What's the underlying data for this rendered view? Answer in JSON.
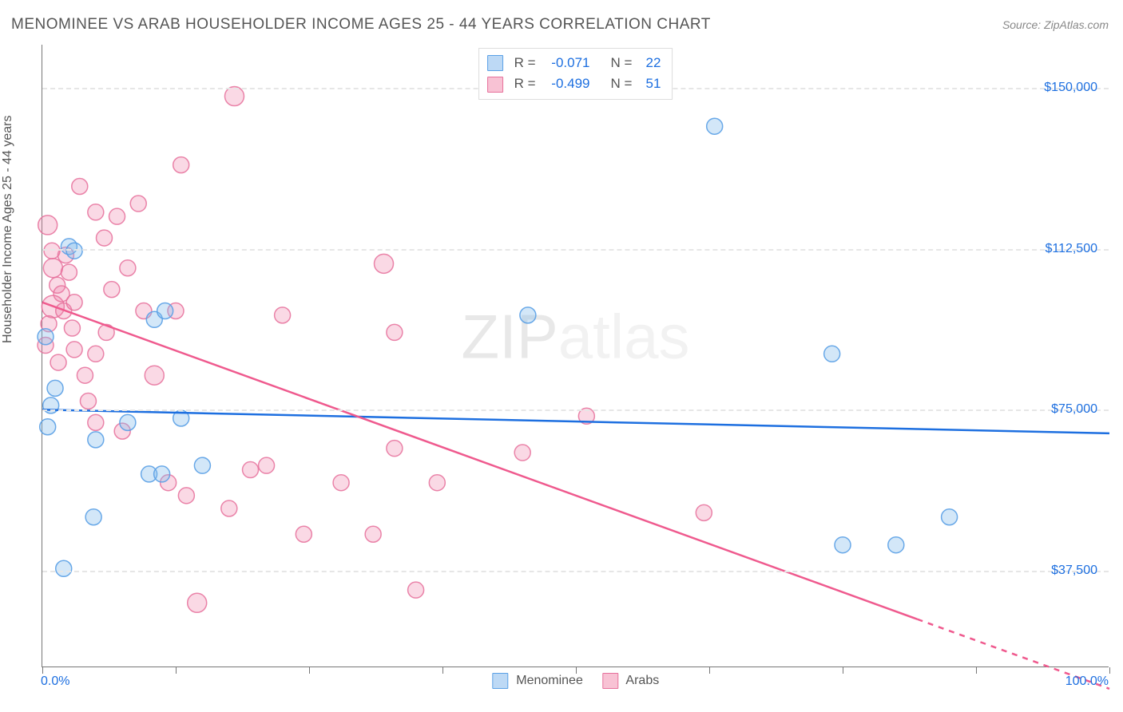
{
  "title": "MENOMINEE VS ARAB HOUSEHOLDER INCOME AGES 25 - 44 YEARS CORRELATION CHART",
  "source": "Source: ZipAtlas.com",
  "watermark_A": "ZIP",
  "watermark_B": "atlas",
  "chart": {
    "type": "scatter",
    "y_axis_label": "Householder Income Ages 25 - 44 years",
    "xlim": [
      0,
      100
    ],
    "ylim": [
      15000,
      160000
    ],
    "y_ticks": [
      37500,
      75000,
      112500,
      150000
    ],
    "y_tick_labels": [
      "$37,500",
      "$75,000",
      "$112,500",
      "$150,000"
    ],
    "x_ticks": [
      0,
      12.5,
      25,
      37.5,
      50,
      62.5,
      75,
      87.5,
      100
    ],
    "x_tick_labels": {
      "0": "0.0%",
      "100": "100.0%"
    },
    "grid_color": "#e6e6e6",
    "background_color": "#ffffff",
    "axis_color": "#777777",
    "label_fontsize": 16,
    "title_fontsize": 19,
    "series": [
      {
        "name": "Menominee",
        "color": "#5aa0e6",
        "fill": "rgba(130,185,235,0.35)",
        "stroke": "rgba(90,160,230,0.9)",
        "stats": {
          "R": "-0.071",
          "N": "22"
        },
        "trend": {
          "x1": 0,
          "y1": 75000,
          "x2": 100,
          "y2": 69500,
          "color": "#1d6fe0",
          "width": 2.5
        },
        "points": [
          {
            "x": 0.3,
            "y": 92000,
            "r": 10
          },
          {
            "x": 2.5,
            "y": 113000,
            "r": 10
          },
          {
            "x": 3.0,
            "y": 112000,
            "r": 10
          },
          {
            "x": 1.2,
            "y": 80000,
            "r": 10
          },
          {
            "x": 0.8,
            "y": 76000,
            "r": 10
          },
          {
            "x": 0.5,
            "y": 71000,
            "r": 10
          },
          {
            "x": 4.8,
            "y": 50000,
            "r": 10
          },
          {
            "x": 2.0,
            "y": 38000,
            "r": 10
          },
          {
            "x": 5.0,
            "y": 68000,
            "r": 10
          },
          {
            "x": 10.0,
            "y": 60000,
            "r": 10
          },
          {
            "x": 11.2,
            "y": 60000,
            "r": 10
          },
          {
            "x": 13.0,
            "y": 73000,
            "r": 10
          },
          {
            "x": 15.0,
            "y": 62000,
            "r": 10
          },
          {
            "x": 8.0,
            "y": 72000,
            "r": 10
          },
          {
            "x": 10.5,
            "y": 96000,
            "r": 10
          },
          {
            "x": 45.5,
            "y": 97000,
            "r": 10
          },
          {
            "x": 63.0,
            "y": 141000,
            "r": 10
          },
          {
            "x": 74.0,
            "y": 88000,
            "r": 10
          },
          {
            "x": 85.0,
            "y": 50000,
            "r": 10
          },
          {
            "x": 75.0,
            "y": 43500,
            "r": 10
          },
          {
            "x": 80.0,
            "y": 43500,
            "r": 10
          },
          {
            "x": 11.5,
            "y": 98000,
            "r": 10
          }
        ]
      },
      {
        "name": "Arabs",
        "color": "#e6709b",
        "fill": "rgba(240,130,170,0.30)",
        "stroke": "rgba(230,112,155,0.85)",
        "stats": {
          "R": "-0.499",
          "N": "51"
        },
        "trend": {
          "x1": 0,
          "y1": 100000,
          "x2": 100,
          "y2": 10000,
          "color": "#ef5a8e",
          "width": 2.5,
          "dash_after_x": 82
        },
        "points": [
          {
            "x": 0.5,
            "y": 118000,
            "r": 12
          },
          {
            "x": 1.0,
            "y": 108000,
            "r": 12
          },
          {
            "x": 1.4,
            "y": 104000,
            "r": 10
          },
          {
            "x": 1.8,
            "y": 102000,
            "r": 10
          },
          {
            "x": 1.0,
            "y": 99000,
            "r": 14
          },
          {
            "x": 0.6,
            "y": 95000,
            "r": 10
          },
          {
            "x": 2.5,
            "y": 107000,
            "r": 10
          },
          {
            "x": 0.3,
            "y": 90000,
            "r": 10
          },
          {
            "x": 2.0,
            "y": 98000,
            "r": 10
          },
          {
            "x": 3.0,
            "y": 100000,
            "r": 10
          },
          {
            "x": 3.0,
            "y": 89000,
            "r": 10
          },
          {
            "x": 5.0,
            "y": 121000,
            "r": 10
          },
          {
            "x": 5.8,
            "y": 115000,
            "r": 10
          },
          {
            "x": 5.0,
            "y": 88000,
            "r": 10
          },
          {
            "x": 6.5,
            "y": 103000,
            "r": 10
          },
          {
            "x": 7.0,
            "y": 120000,
            "r": 10
          },
          {
            "x": 9.0,
            "y": 123000,
            "r": 10
          },
          {
            "x": 9.5,
            "y": 98000,
            "r": 10
          },
          {
            "x": 10.5,
            "y": 83000,
            "r": 12
          },
          {
            "x": 12.5,
            "y": 98000,
            "r": 10
          },
          {
            "x": 13.0,
            "y": 132000,
            "r": 10
          },
          {
            "x": 18.0,
            "y": 148000,
            "r": 12
          },
          {
            "x": 5.0,
            "y": 72000,
            "r": 10
          },
          {
            "x": 4.3,
            "y": 77000,
            "r": 10
          },
          {
            "x": 7.5,
            "y": 70000,
            "r": 10
          },
          {
            "x": 11.8,
            "y": 58000,
            "r": 10
          },
          {
            "x": 13.5,
            "y": 55000,
            "r": 10
          },
          {
            "x": 17.5,
            "y": 52000,
            "r": 10
          },
          {
            "x": 14.5,
            "y": 30000,
            "r": 12
          },
          {
            "x": 19.5,
            "y": 61000,
            "r": 10
          },
          {
            "x": 21.0,
            "y": 62000,
            "r": 10
          },
          {
            "x": 22.5,
            "y": 97000,
            "r": 10
          },
          {
            "x": 24.5,
            "y": 46000,
            "r": 10
          },
          {
            "x": 28.0,
            "y": 58000,
            "r": 10
          },
          {
            "x": 31.0,
            "y": 46000,
            "r": 10
          },
          {
            "x": 32.0,
            "y": 109000,
            "r": 12
          },
          {
            "x": 33.0,
            "y": 66000,
            "r": 10
          },
          {
            "x": 33.0,
            "y": 93000,
            "r": 10
          },
          {
            "x": 35.0,
            "y": 33000,
            "r": 10
          },
          {
            "x": 37.0,
            "y": 58000,
            "r": 10
          },
          {
            "x": 45.0,
            "y": 65000,
            "r": 10
          },
          {
            "x": 51.0,
            "y": 73500,
            "r": 10
          },
          {
            "x": 62.0,
            "y": 51000,
            "r": 10
          },
          {
            "x": 3.5,
            "y": 127000,
            "r": 10
          },
          {
            "x": 2.2,
            "y": 111000,
            "r": 10
          },
          {
            "x": 0.9,
            "y": 112000,
            "r": 10
          },
          {
            "x": 2.8,
            "y": 94000,
            "r": 10
          },
          {
            "x": 4.0,
            "y": 83000,
            "r": 10
          },
          {
            "x": 6.0,
            "y": 93000,
            "r": 10
          },
          {
            "x": 1.5,
            "y": 86000,
            "r": 10
          },
          {
            "x": 8.0,
            "y": 108000,
            "r": 10
          }
        ]
      }
    ],
    "bottom_legend": [
      "Menominee",
      "Arabs"
    ],
    "top_legend_rows": [
      {
        "swatch": "blue",
        "R_label": "R =",
        "R": "-0.071",
        "N_label": "N =",
        "N": "22"
      },
      {
        "swatch": "pink",
        "R_label": "R =",
        "R": "-0.499",
        "N_label": "N =",
        "N": "51"
      }
    ]
  }
}
